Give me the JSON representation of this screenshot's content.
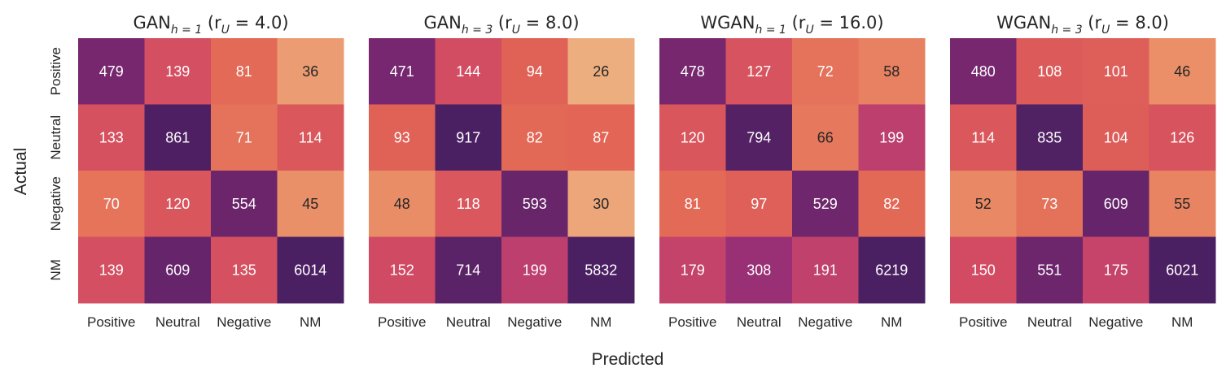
{
  "chart_data": {
    "type": "heatmap",
    "xlabel": "Predicted",
    "ylabel": "Actual",
    "x_categories": [
      "Positive",
      "Neutral",
      "Negative",
      "NM"
    ],
    "y_categories": [
      "Positive",
      "Neutral",
      "Negative",
      "NM"
    ],
    "colormap": "flare",
    "colors": {
      "low": "#edb081",
      "high": "#4b2062"
    },
    "panels": [
      {
        "title": {
          "base": "GAN",
          "sub": "h = 1",
          "param": "(r",
          "param_sub": "U",
          "param_val": " = 4.0)"
        },
        "matrix": [
          [
            479,
            139,
            81,
            36
          ],
          [
            133,
            861,
            71,
            114
          ],
          [
            70,
            120,
            554,
            45
          ],
          [
            139,
            609,
            135,
            6014
          ]
        ]
      },
      {
        "title": {
          "base": "GAN",
          "sub": "h = 3",
          "param": "(r",
          "param_sub": "U",
          "param_val": " = 8.0)"
        },
        "matrix": [
          [
            471,
            144,
            94,
            26
          ],
          [
            93,
            917,
            82,
            87
          ],
          [
            48,
            118,
            593,
            30
          ],
          [
            152,
            714,
            199,
            5832
          ]
        ]
      },
      {
        "title": {
          "base": "WGAN",
          "sub": "h = 1",
          "param": "(r",
          "param_sub": "U",
          "param_val": " = 16.0)"
        },
        "matrix": [
          [
            478,
            127,
            72,
            58
          ],
          [
            120,
            794,
            66,
            199
          ],
          [
            81,
            97,
            529,
            82
          ],
          [
            179,
            308,
            191,
            6219
          ]
        ]
      },
      {
        "title": {
          "base": "WGAN",
          "sub": "h = 3",
          "param": "(r",
          "param_sub": "U",
          "param_val": " = 8.0)"
        },
        "matrix": [
          [
            480,
            108,
            101,
            46
          ],
          [
            114,
            835,
            104,
            126
          ],
          [
            52,
            73,
            609,
            55
          ],
          [
            150,
            551,
            175,
            6021
          ]
        ]
      }
    ]
  }
}
